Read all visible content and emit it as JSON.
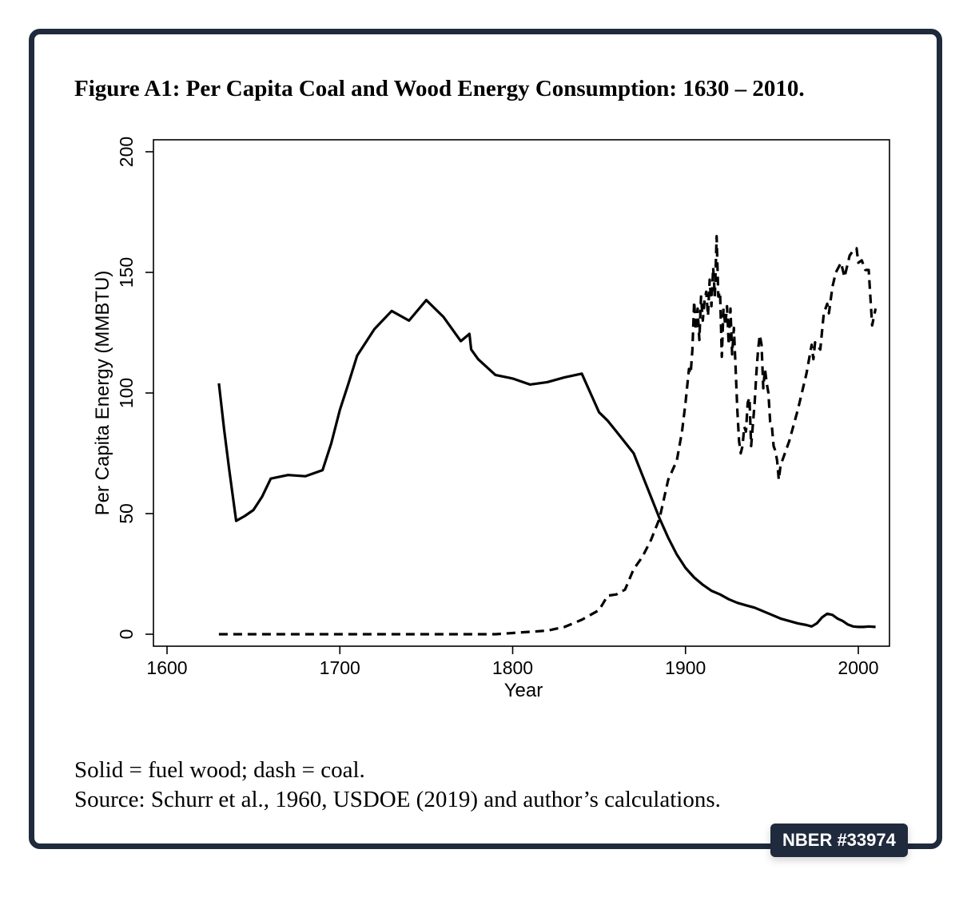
{
  "figure": {
    "title": "Figure A1: Per Capita Coal and Wood Energy Consumption: 1630 – 2010.",
    "note": "Solid = fuel wood; dash = coal.",
    "source": "Source: Schurr et al., 1960, USDOE (2019) and author’s calculations.",
    "badge": "NBER #33974"
  },
  "chart_data": {
    "type": "line",
    "xlabel": "Year",
    "ylabel": "Per Capita Energy (MMBTU)",
    "xlim": [
      1600,
      2010
    ],
    "ylim": [
      0,
      200
    ],
    "x_ticks": [
      1600,
      1700,
      1800,
      1900,
      2000
    ],
    "y_ticks": [
      0,
      50,
      100,
      150,
      200
    ],
    "grid": false,
    "series": [
      {
        "style": "solid",
        "color": "#000000",
        "points": [
          [
            1630,
            104
          ],
          [
            1633,
            85
          ],
          [
            1636,
            68
          ],
          [
            1640,
            47
          ],
          [
            1645,
            49
          ],
          [
            1650,
            51.5
          ],
          [
            1655,
            57
          ],
          [
            1660,
            64.5
          ],
          [
            1670,
            66
          ],
          [
            1680,
            65.5
          ],
          [
            1690,
            68
          ],
          [
            1695,
            79
          ],
          [
            1700,
            93
          ],
          [
            1705,
            104
          ],
          [
            1710,
            115.5
          ],
          [
            1720,
            126.5
          ],
          [
            1730,
            134
          ],
          [
            1740,
            130
          ],
          [
            1750,
            138.5
          ],
          [
            1760,
            131.5
          ],
          [
            1770,
            121.5
          ],
          [
            1775,
            124.5
          ],
          [
            1776,
            118
          ],
          [
            1780,
            114
          ],
          [
            1790,
            107.5
          ],
          [
            1800,
            106
          ],
          [
            1810,
            103.5
          ],
          [
            1820,
            104.5
          ],
          [
            1830,
            106.5
          ],
          [
            1840,
            108
          ],
          [
            1845,
            100
          ],
          [
            1850,
            92
          ],
          [
            1855,
            88.5
          ],
          [
            1860,
            84
          ],
          [
            1865,
            79.5
          ],
          [
            1870,
            75
          ],
          [
            1875,
            66
          ],
          [
            1880,
            57
          ],
          [
            1885,
            48
          ],
          [
            1890,
            40
          ],
          [
            1895,
            33
          ],
          [
            1900,
            27.5
          ],
          [
            1905,
            23.5
          ],
          [
            1910,
            20.5
          ],
          [
            1915,
            18
          ],
          [
            1920,
            16.5
          ],
          [
            1925,
            14.5
          ],
          [
            1930,
            13
          ],
          [
            1935,
            12
          ],
          [
            1940,
            11
          ],
          [
            1945,
            9.5
          ],
          [
            1950,
            8
          ],
          [
            1955,
            6.5
          ],
          [
            1960,
            5.5
          ],
          [
            1965,
            4.5
          ],
          [
            1970,
            3.8
          ],
          [
            1973,
            3.2
          ],
          [
            1976,
            4.5
          ],
          [
            1979,
            7
          ],
          [
            1982,
            8.5
          ],
          [
            1985,
            8
          ],
          [
            1988,
            6.5
          ],
          [
            1991,
            5.5
          ],
          [
            1994,
            4
          ],
          [
            1997,
            3.2
          ],
          [
            2000,
            3
          ],
          [
            2003,
            3
          ],
          [
            2006,
            3.2
          ],
          [
            2010,
            3
          ]
        ]
      },
      {
        "style": "dash",
        "color": "#000000",
        "points": [
          [
            1630,
            0
          ],
          [
            1700,
            0
          ],
          [
            1790,
            0
          ],
          [
            1800,
            0.5
          ],
          [
            1810,
            1
          ],
          [
            1820,
            1.5
          ],
          [
            1830,
            3
          ],
          [
            1840,
            6
          ],
          [
            1850,
            10
          ],
          [
            1855,
            16
          ],
          [
            1860,
            16.5
          ],
          [
            1865,
            18.5
          ],
          [
            1870,
            27
          ],
          [
            1875,
            32
          ],
          [
            1880,
            39
          ],
          [
            1885,
            48
          ],
          [
            1890,
            64
          ],
          [
            1895,
            72
          ],
          [
            1898,
            84
          ],
          [
            1900,
            96
          ],
          [
            1902,
            110
          ],
          [
            1903,
            108
          ],
          [
            1904,
            118
          ],
          [
            1905,
            138
          ],
          [
            1906,
            126
          ],
          [
            1907,
            135
          ],
          [
            1908,
            122
          ],
          [
            1909,
            140
          ],
          [
            1910,
            130
          ],
          [
            1911,
            138
          ],
          [
            1912,
            142
          ],
          [
            1913,
            132
          ],
          [
            1914,
            147
          ],
          [
            1915,
            136
          ],
          [
            1916,
            152
          ],
          [
            1917,
            140
          ],
          [
            1918,
            165
          ],
          [
            1919,
            140
          ],
          [
            1920,
            142
          ],
          [
            1921,
            115
          ],
          [
            1922,
            135
          ],
          [
            1923,
            128
          ],
          [
            1924,
            136
          ],
          [
            1925,
            120
          ],
          [
            1926,
            135
          ],
          [
            1927,
            116
          ],
          [
            1928,
            127
          ],
          [
            1929,
            110
          ],
          [
            1930,
            93
          ],
          [
            1931,
            80
          ],
          [
            1932,
            75
          ],
          [
            1933,
            78
          ],
          [
            1934,
            86
          ],
          [
            1935,
            84
          ],
          [
            1936,
            96
          ],
          [
            1937,
            98
          ],
          [
            1938,
            78
          ],
          [
            1939,
            87
          ],
          [
            1940,
            96
          ],
          [
            1941,
            108
          ],
          [
            1942,
            118
          ],
          [
            1943,
            124
          ],
          [
            1944,
            120
          ],
          [
            1945,
            102
          ],
          [
            1946,
            110
          ],
          [
            1947,
            104
          ],
          [
            1948,
            100
          ],
          [
            1949,
            88
          ],
          [
            1950,
            86
          ],
          [
            1951,
            78
          ],
          [
            1952,
            76
          ],
          [
            1953,
            72
          ],
          [
            1954,
            64
          ],
          [
            1955,
            70
          ],
          [
            1958,
            76
          ],
          [
            1960,
            80
          ],
          [
            1965,
            93
          ],
          [
            1970,
            108
          ],
          [
            1973,
            120
          ],
          [
            1974,
            114
          ],
          [
            1975,
            121
          ],
          [
            1978,
            118
          ],
          [
            1980,
            133
          ],
          [
            1982,
            137
          ],
          [
            1983,
            133
          ],
          [
            1985,
            144
          ],
          [
            1987,
            150
          ],
          [
            1990,
            154
          ],
          [
            1992,
            148
          ],
          [
            1995,
            157
          ],
          [
            1997,
            159
          ],
          [
            1999,
            160
          ],
          [
            2000,
            154
          ],
          [
            2002,
            155
          ],
          [
            2004,
            151
          ],
          [
            2006,
            151
          ],
          [
            2008,
            128
          ],
          [
            2010,
            135
          ]
        ]
      }
    ]
  }
}
